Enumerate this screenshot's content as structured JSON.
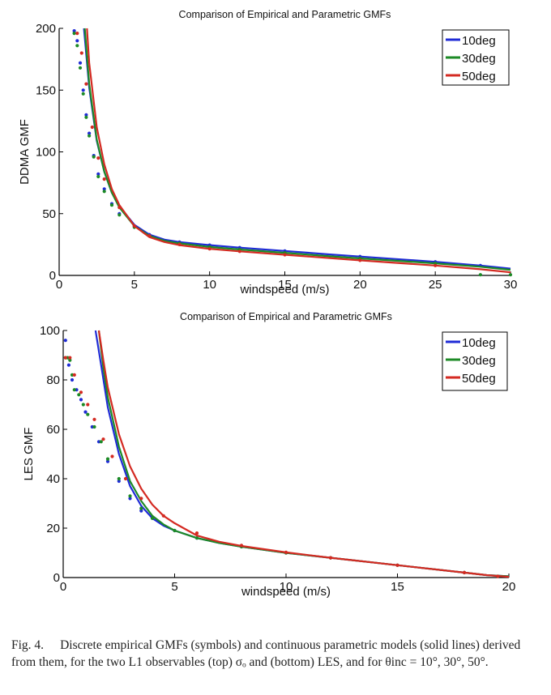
{
  "chart_data": [
    {
      "type": "line",
      "title": "Comparison of Empirical and Parametric GMFs",
      "xlabel": "windspeed (m/s)",
      "ylabel": "DDMA GMF",
      "xlim": [
        0,
        30
      ],
      "ylim": [
        0,
        200
      ],
      "xticks": [
        "0",
        "5",
        "10",
        "15",
        "20",
        "25",
        "30"
      ],
      "yticks": [
        "0",
        "50",
        "100",
        "150",
        "200"
      ],
      "grid": false,
      "legend_position": "top-right",
      "series": [
        {
          "name": "10deg",
          "color": "#1f2bd6",
          "x": [
            1.65,
            2,
            2.5,
            3,
            3.5,
            4,
            5,
            6,
            7,
            8,
            10,
            12,
            15,
            18,
            20,
            22,
            25,
            28,
            30
          ],
          "y": [
            200,
            152,
            109,
            84,
            67,
            56,
            41,
            33,
            29,
            27,
            24.5,
            22.5,
            19.8,
            17,
            15.3,
            13.6,
            11,
            8,
            5.5
          ],
          "empirical_x": [
            1,
            1.2,
            1.4,
            1.6,
            1.8,
            2,
            2.3,
            2.6,
            3,
            3.5,
            4,
            5,
            6,
            8,
            10,
            12,
            15,
            20,
            25,
            28
          ],
          "empirical_y": [
            198,
            190,
            172,
            150,
            130,
            115,
            97,
            82,
            70,
            58,
            50,
            40,
            33,
            27,
            24.5,
            22.5,
            19.8,
            15.3,
            11,
            8
          ]
        },
        {
          "name": "30deg",
          "color": "#1c8a26",
          "x": [
            1.7,
            2,
            2.5,
            3,
            3.5,
            4,
            5,
            6,
            7,
            8,
            10,
            12,
            15,
            18,
            20,
            22,
            25,
            28,
            30
          ],
          "y": [
            200,
            155,
            110,
            84,
            67,
            55,
            40,
            32,
            28,
            26,
            23,
            21,
            18.3,
            15.5,
            13.8,
            12.2,
            9.8,
            7,
            4.5
          ],
          "empirical_x": [
            1,
            1.2,
            1.4,
            1.6,
            1.8,
            2,
            2.3,
            2.6,
            3,
            3.5,
            4,
            5,
            6,
            8,
            10,
            12,
            15,
            20,
            25,
            28,
            30
          ],
          "empirical_y": [
            196,
            186,
            168,
            147,
            128,
            113,
            96,
            80,
            68,
            57,
            49,
            39,
            32,
            26,
            23,
            21,
            18.3,
            13.8,
            9.8,
            0.5,
            0.5
          ]
        },
        {
          "name": "50deg",
          "color": "#d42a22",
          "x": [
            1.85,
            2,
            2.5,
            3,
            3.5,
            4,
            5,
            6,
            7,
            8,
            10,
            12,
            15,
            18,
            20,
            22,
            25,
            28,
            30
          ],
          "y": [
            200,
            172,
            120,
            90,
            70,
            57,
            40,
            31,
            27,
            24.5,
            21.5,
            19.5,
            16.7,
            14,
            12.2,
            10.5,
            8,
            5,
            2.5
          ],
          "empirical_x": [
            1.2,
            1.5,
            1.8,
            2.2,
            2.6,
            3,
            4,
            5,
            6,
            8,
            10,
            12,
            15,
            20,
            25
          ],
          "empirical_y": [
            196,
            180,
            155,
            120,
            95,
            78,
            55,
            40,
            32,
            25,
            21.5,
            19.5,
            16.7,
            12.2,
            8
          ]
        }
      ]
    },
    {
      "type": "line",
      "title": "Comparison of Empirical and Parametric GMFs",
      "xlabel": "windspeed (m/s)",
      "ylabel": "LES GMF",
      "xlim": [
        0,
        20
      ],
      "ylim": [
        0,
        100
      ],
      "xticks": [
        "0",
        "5",
        "10",
        "15",
        "20"
      ],
      "yticks": [
        "0",
        "20",
        "40",
        "60",
        "80",
        "100"
      ],
      "grid": false,
      "legend_position": "top-right",
      "series": [
        {
          "name": "10deg",
          "color": "#1f2bd6",
          "x": [
            1.45,
            1.7,
            2,
            2.5,
            3,
            3.5,
            4,
            4.5,
            5,
            6,
            7,
            8,
            10,
            12,
            14,
            16,
            18,
            19,
            20
          ],
          "y": [
            100,
            86,
            69,
            50,
            37,
            29,
            24,
            21,
            19,
            16,
            14,
            12.5,
            10,
            8,
            6,
            4,
            2,
            1,
            0.5
          ],
          "empirical_x": [
            0.1,
            0.25,
            0.4,
            0.6,
            0.8,
            1,
            1.3,
            1.6,
            2,
            2.5,
            3,
            3.5,
            4,
            5,
            6,
            8,
            10,
            12,
            15,
            18,
            19.5
          ],
          "empirical_y": [
            96,
            86,
            80,
            76,
            72,
            67,
            61,
            55,
            47,
            39,
            32,
            27,
            24,
            19,
            16,
            12.5,
            10,
            8,
            5,
            2,
            0.5
          ]
        },
        {
          "name": "30deg",
          "color": "#1c8a26",
          "x": [
            1.6,
            1.8,
            2,
            2.5,
            3,
            3.5,
            4,
            4.5,
            5,
            6,
            7,
            8,
            10,
            12,
            14,
            16,
            18,
            19,
            20
          ],
          "y": [
            100,
            85,
            73,
            53,
            39,
            31,
            25,
            21.5,
            19,
            16,
            14,
            12.5,
            10,
            8,
            6,
            4,
            2,
            1,
            0.5
          ],
          "empirical_x": [
            0.1,
            0.2,
            0.3,
            0.4,
            0.5,
            0.7,
            0.9,
            1.1,
            1.4,
            1.7,
            2,
            2.5,
            3,
            3.5,
            4,
            5,
            6,
            8,
            10,
            12,
            15,
            18,
            19.5
          ],
          "empirical_y": [
            89,
            89,
            88,
            82,
            76,
            74,
            70,
            66,
            61,
            55,
            48,
            40,
            33,
            28,
            24,
            19,
            16,
            12.5,
            10,
            8,
            5,
            2,
            0.5
          ]
        },
        {
          "name": "50deg",
          "color": "#d42a22",
          "x": [
            1.6,
            1.8,
            2,
            2.5,
            3,
            3.5,
            4,
            4.5,
            5,
            6,
            7,
            8,
            10,
            12,
            14,
            16,
            18,
            19,
            20
          ],
          "y": [
            100,
            88,
            77,
            58,
            45,
            36,
            29.5,
            25,
            22,
            17,
            14.5,
            12.8,
            10.2,
            8,
            6,
            4,
            2,
            1,
            0.3
          ],
          "empirical_x": [
            0.1,
            0.3,
            0.5,
            0.8,
            1.1,
            1.4,
            1.8,
            2.2,
            2.8,
            3.5,
            4.5,
            6,
            8,
            10,
            12,
            15,
            18,
            19.5
          ],
          "empirical_y": [
            89,
            89,
            82,
            75,
            70,
            64,
            56,
            49,
            40,
            32,
            25,
            18,
            13,
            10.2,
            8,
            5,
            2,
            0.5
          ]
        }
      ]
    }
  ],
  "caption": {
    "label": "Fig. 4.",
    "text": "Discrete empirical GMFs (symbols) and continuous parametric models (solid lines) derived from them, for the two L1 observables (top) σₒ and (bottom) LES, and for θinc = 10°, 30°, 50°."
  }
}
